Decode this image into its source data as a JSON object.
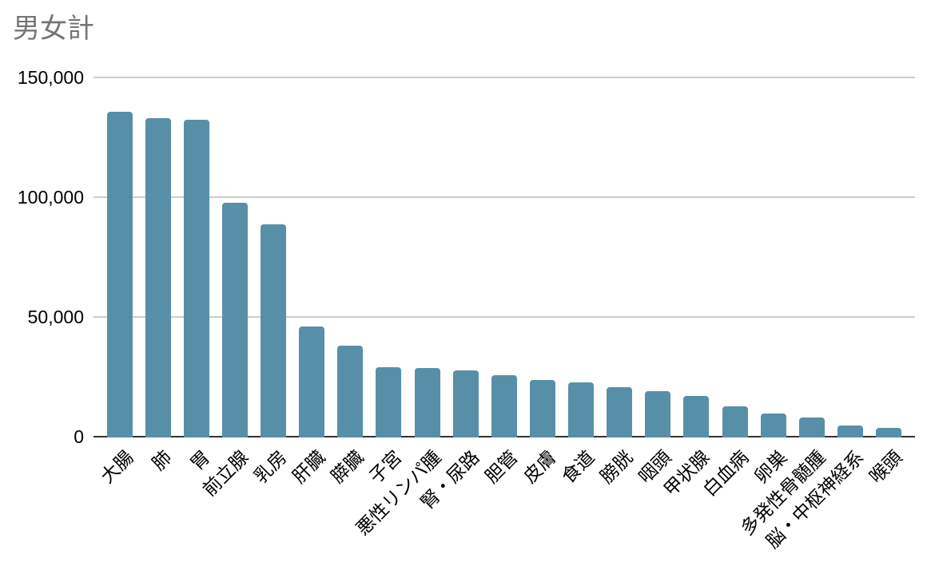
{
  "title": "男女計",
  "colors": {
    "bar": "#588fa8",
    "title_text": "#757575",
    "axis_text": "#000000",
    "gridline": "#cccccc",
    "axis_line": "#333333",
    "background": "#ffffff"
  },
  "chart_data": {
    "type": "bar",
    "title": "男女計",
    "categories": [
      "大腸",
      "肺",
      "胃",
      "前立腺",
      "乳房",
      "肝臓",
      "膵臓",
      "子宮",
      "悪性リンパ腫",
      "腎・尿路",
      "胆管",
      "皮膚",
      "食道",
      "膀胱",
      "咽頭",
      "甲状腺",
      "白血病",
      "卵巣",
      "多発性骨髄腫",
      "脳・中枢神経系",
      "喉頭"
    ],
    "values": [
      135600,
      132900,
      132300,
      97700,
      88700,
      46100,
      38100,
      29000,
      28800,
      27800,
      25800,
      23800,
      22800,
      20500,
      19100,
      17100,
      12800,
      9500,
      8000,
      4700,
      3800
    ],
    "xlabel": "",
    "ylabel": "",
    "ylim": [
      0,
      150000
    ],
    "yticks": [
      0,
      50000,
      100000,
      150000
    ],
    "ytick_labels": [
      "0",
      "50,000",
      "100,000",
      "150,000"
    ],
    "grid": true,
    "legend": "none",
    "bar_color": "#588fa8",
    "x_label_rotation": -45
  }
}
